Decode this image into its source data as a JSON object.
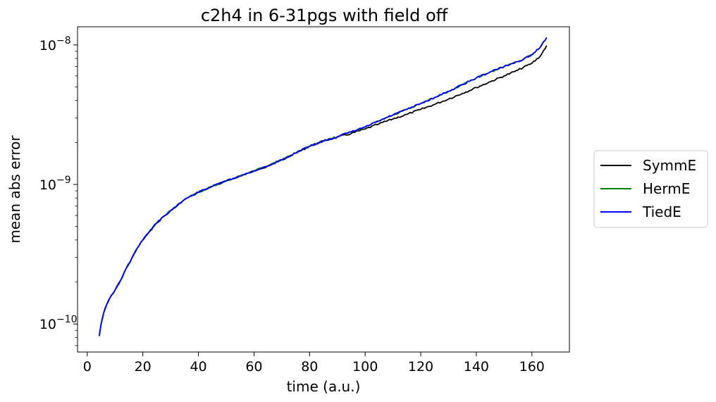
{
  "chart_data": {
    "type": "line",
    "title": "c2h4 in 6-31pgs with field off",
    "xlabel": "time (a.u.)",
    "ylabel": "mean abs error",
    "xscale": "linear",
    "yscale": "log",
    "xlim": [
      -3.5,
      173.5
    ],
    "ylim": [
      6.3e-11,
      1.35e-08
    ],
    "xticks": [
      0,
      20,
      40,
      60,
      80,
      100,
      120,
      140,
      160
    ],
    "yticks_major": [
      {
        "value": 1e-10,
        "base": "10",
        "exp": "−10"
      },
      {
        "value": 1e-09,
        "base": "10",
        "exp": "−9"
      },
      {
        "value": 1e-08,
        "base": "10",
        "exp": "−8"
      }
    ],
    "grid": false,
    "legend_position": "right, outside plot area",
    "series": [
      {
        "name": "SymmE",
        "color": "#000000",
        "x": [
          4.3,
          5,
          6,
          7,
          8,
          10,
          12,
          14,
          16,
          18,
          20,
          22,
          25,
          28,
          30,
          35,
          40,
          45,
          50,
          55,
          60,
          65,
          70,
          75,
          80,
          85,
          90,
          95,
          100,
          105,
          110,
          115,
          120,
          125,
          130,
          135,
          140,
          145,
          150,
          155,
          160,
          163,
          165.3
        ],
        "y": [
          8.2e-11,
          1e-10,
          1.22e-10,
          1.38e-10,
          1.52e-10,
          1.75e-10,
          2.05e-10,
          2.5e-10,
          2.95e-10,
          3.5e-10,
          4e-10,
          4.5e-10,
          5.3e-10,
          6e-10,
          6.5e-10,
          7.8e-10,
          8.8e-10,
          9.7e-10,
          1.06e-09,
          1.15e-09,
          1.25e-09,
          1.36e-09,
          1.5e-09,
          1.68e-09,
          1.88e-09,
          2.05e-09,
          2.18e-09,
          2.32e-09,
          2.5e-09,
          2.72e-09,
          2.95e-09,
          3.18e-09,
          3.45e-09,
          3.75e-09,
          4.1e-09,
          4.5e-09,
          4.95e-09,
          5.45e-09,
          6e-09,
          6.6e-09,
          7.4e-09,
          8.3e-09,
          9.9e-09
        ]
      },
      {
        "name": "HermE",
        "color": "#007f00",
        "x": [
          4.3,
          5,
          6,
          7,
          8,
          10,
          12,
          14,
          16,
          18,
          20,
          22,
          25,
          28,
          30,
          35,
          40,
          45,
          50,
          55,
          60,
          65,
          70,
          75,
          80,
          85,
          90,
          95,
          100,
          105,
          110,
          115,
          120,
          125,
          130,
          135,
          140,
          145,
          150,
          155,
          160,
          163,
          165.3
        ],
        "y": [
          8.2e-11,
          1e-10,
          1.22e-10,
          1.38e-10,
          1.52e-10,
          1.75e-10,
          2.05e-10,
          2.5e-10,
          2.95e-10,
          3.5e-10,
          4e-10,
          4.5e-10,
          5.3e-10,
          6e-10,
          6.5e-10,
          7.8e-10,
          8.8e-10,
          9.7e-10,
          1.06e-09,
          1.15e-09,
          1.25e-09,
          1.36e-09,
          1.5e-09,
          1.68e-09,
          1.88e-09,
          2.05e-09,
          2.2e-09,
          2.38e-09,
          2.58e-09,
          2.85e-09,
          3.15e-09,
          3.45e-09,
          3.8e-09,
          4.2e-09,
          4.65e-09,
          5.2e-09,
          5.8e-09,
          6.4e-09,
          7e-09,
          7.6e-09,
          8.5e-09,
          9.6e-09,
          1.13e-08
        ]
      },
      {
        "name": "TiedE",
        "color": "#0000ff",
        "x": [
          4.3,
          5,
          6,
          7,
          8,
          10,
          12,
          14,
          16,
          18,
          20,
          22,
          25,
          28,
          30,
          35,
          40,
          45,
          50,
          55,
          60,
          65,
          70,
          75,
          80,
          85,
          90,
          95,
          100,
          105,
          110,
          115,
          120,
          125,
          130,
          135,
          140,
          145,
          150,
          155,
          160,
          163,
          165.3
        ],
        "y": [
          8.2e-11,
          1e-10,
          1.22e-10,
          1.38e-10,
          1.52e-10,
          1.75e-10,
          2.05e-10,
          2.5e-10,
          2.95e-10,
          3.5e-10,
          4e-10,
          4.5e-10,
          5.3e-10,
          6e-10,
          6.5e-10,
          7.8e-10,
          8.8e-10,
          9.7e-10,
          1.06e-09,
          1.15e-09,
          1.25e-09,
          1.36e-09,
          1.5e-09,
          1.68e-09,
          1.88e-09,
          2.05e-09,
          2.2e-09,
          2.38e-09,
          2.58e-09,
          2.85e-09,
          3.15e-09,
          3.45e-09,
          3.8e-09,
          4.2e-09,
          4.65e-09,
          5.2e-09,
          5.8e-09,
          6.4e-09,
          7e-09,
          7.6e-09,
          8.5e-09,
          9.6e-09,
          1.13e-08
        ]
      }
    ]
  }
}
